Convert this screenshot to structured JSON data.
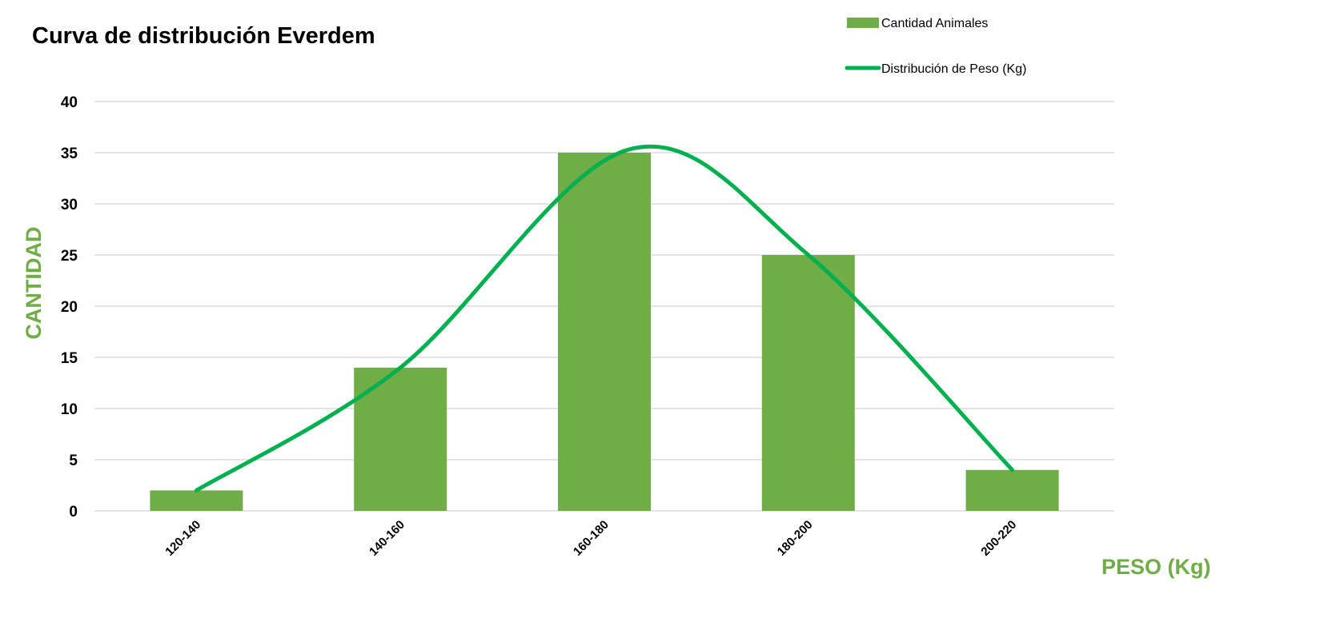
{
  "chart_data": {
    "type": "bar",
    "title": "Curva de distribución Everdem",
    "xlabel": "PESO (Kg)",
    "ylabel": "CANTIDAD",
    "categories": [
      "120-140",
      "140-160",
      "160-180",
      "180-200",
      "200-220"
    ],
    "ylim": [
      0,
      40
    ],
    "yticks": [
      0,
      5,
      10,
      15,
      20,
      25,
      30,
      35,
      40
    ],
    "grid": true,
    "legend_position": "top-right",
    "series": [
      {
        "name": "Cantidad Animales",
        "type": "bar",
        "values": [
          2,
          14,
          35,
          25,
          4
        ],
        "color": "#70AD47"
      },
      {
        "name": "Distribución de Peso (Kg)",
        "type": "line",
        "smooth": true,
        "values": [
          2,
          14,
          35,
          25,
          4
        ],
        "peak": {
          "x": "160-180",
          "y": 35.3
        },
        "color": "#00B050"
      }
    ],
    "axis_title_color": "#70AD47"
  }
}
